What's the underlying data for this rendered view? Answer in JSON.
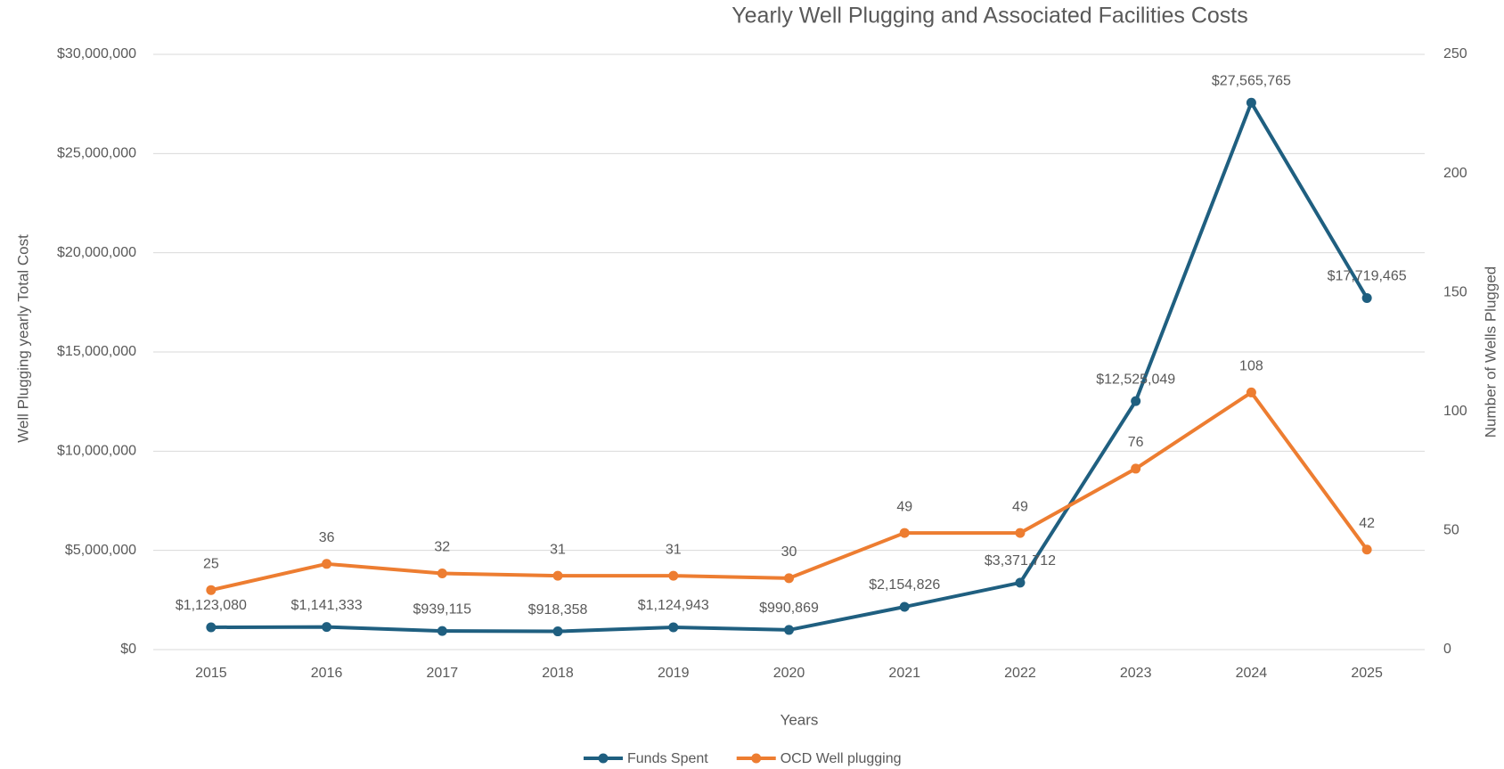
{
  "chart_data": {
    "type": "line",
    "title": "Yearly Well Plugging and Associated Facilities Costs",
    "x_label": "Years",
    "y_label": "Well Plugging yearly Total Cost",
    "y2_label": "Number of Wells Plugged",
    "categories": [
      "2015",
      "2016",
      "2017",
      "2018",
      "2019",
      "2020",
      "2021",
      "2022",
      "2023",
      "2024",
      "2025"
    ],
    "series": [
      {
        "name": "Funds Spent",
        "color": "#1f5f80",
        "values": [
          1123080,
          1141333,
          939115,
          918358,
          1124943,
          990869,
          2154826,
          3371712,
          12525049,
          27565765,
          17719465
        ],
        "value_labels": [
          "$1,123,080",
          "$1,141,333",
          "$939,115",
          "$918,358",
          "$1,124,943",
          "$990,869",
          "$2,154,826",
          "$3,371,712",
          "$12,525,049",
          "$27,565,765",
          "$17,719,465"
        ]
      },
      {
        "name": "OCD Well plugging",
        "color": "#ed7d31",
        "axis": "y2",
        "values": [
          25,
          36,
          32,
          31,
          31,
          30,
          49,
          49,
          76,
          108,
          42
        ]
      }
    ],
    "ylim": [
      0,
      30000000
    ],
    "yticks": [
      {
        "value": 0,
        "label": "$0"
      },
      {
        "value": 5000000,
        "label": "$5,000,000"
      },
      {
        "value": 10000000,
        "label": "$10,000,000"
      },
      {
        "value": 15000000,
        "label": "$15,000,000"
      },
      {
        "value": 20000000,
        "label": "$20,000,000"
      },
      {
        "value": 25000000,
        "label": "$25,000,000"
      },
      {
        "value": 30000000,
        "label": "$30,000,000"
      }
    ],
    "y2lim": [
      0,
      250
    ],
    "y2ticks": [
      0,
      50,
      100,
      150,
      200,
      250
    ],
    "grid": true,
    "legend": "bottom"
  }
}
